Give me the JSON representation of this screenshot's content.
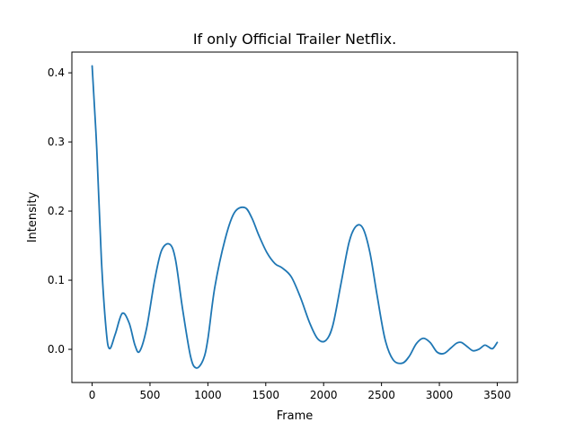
{
  "chart_data": {
    "type": "line",
    "title": "If only  Official Trailer  Netflix.",
    "xlabel": "Frame",
    "ylabel": "Intensity",
    "xlim": [
      -175,
      3675
    ],
    "ylim": [
      -0.048,
      0.43
    ],
    "xticks": [
      0,
      500,
      1000,
      1500,
      2000,
      2500,
      3000,
      3500
    ],
    "xtick_labels": [
      "0",
      "500",
      "1000",
      "1500",
      "2000",
      "2500",
      "3000",
      "3500"
    ],
    "yticks": [
      0.0,
      0.1,
      0.2,
      0.3,
      0.4
    ],
    "ytick_labels": [
      "0.0",
      "0.1",
      "0.2",
      "0.3",
      "0.4"
    ],
    "grid": false,
    "line_color": "#1f77b4",
    "series": [
      {
        "x": [
          0,
          40,
          80,
          120,
          150,
          200,
          260,
          320,
          370,
          410,
          470,
          540,
          600,
          670,
          720,
          780,
          850,
          900,
          960,
          1000,
          1060,
          1150,
          1230,
          1320,
          1380,
          1440,
          1510,
          1580,
          1640,
          1720,
          1800,
          1880,
          1950,
          2020,
          2080,
          2150,
          2220,
          2280,
          2340,
          2400,
          2460,
          2530,
          2600,
          2680,
          2740,
          2800,
          2860,
          2920,
          2980,
          3040,
          3100,
          3150,
          3190,
          3240,
          3290,
          3340,
          3390,
          3420,
          3460,
          3500
        ],
        "values": [
          0.41,
          0.29,
          0.13,
          0.03,
          0.001,
          0.022,
          0.052,
          0.038,
          0.006,
          -0.003,
          0.03,
          0.1,
          0.143,
          0.152,
          0.13,
          0.06,
          -0.01,
          -0.027,
          -0.015,
          0.015,
          0.09,
          0.16,
          0.198,
          0.205,
          0.19,
          0.165,
          0.14,
          0.124,
          0.118,
          0.105,
          0.075,
          0.038,
          0.015,
          0.013,
          0.035,
          0.095,
          0.155,
          0.178,
          0.175,
          0.14,
          0.08,
          0.015,
          -0.015,
          -0.02,
          -0.01,
          0.008,
          0.016,
          0.01,
          -0.004,
          -0.006,
          0.002,
          0.009,
          0.01,
          0.004,
          -0.002,
          0.0,
          0.006,
          0.004,
          0.001,
          0.01
        ]
      }
    ]
  }
}
